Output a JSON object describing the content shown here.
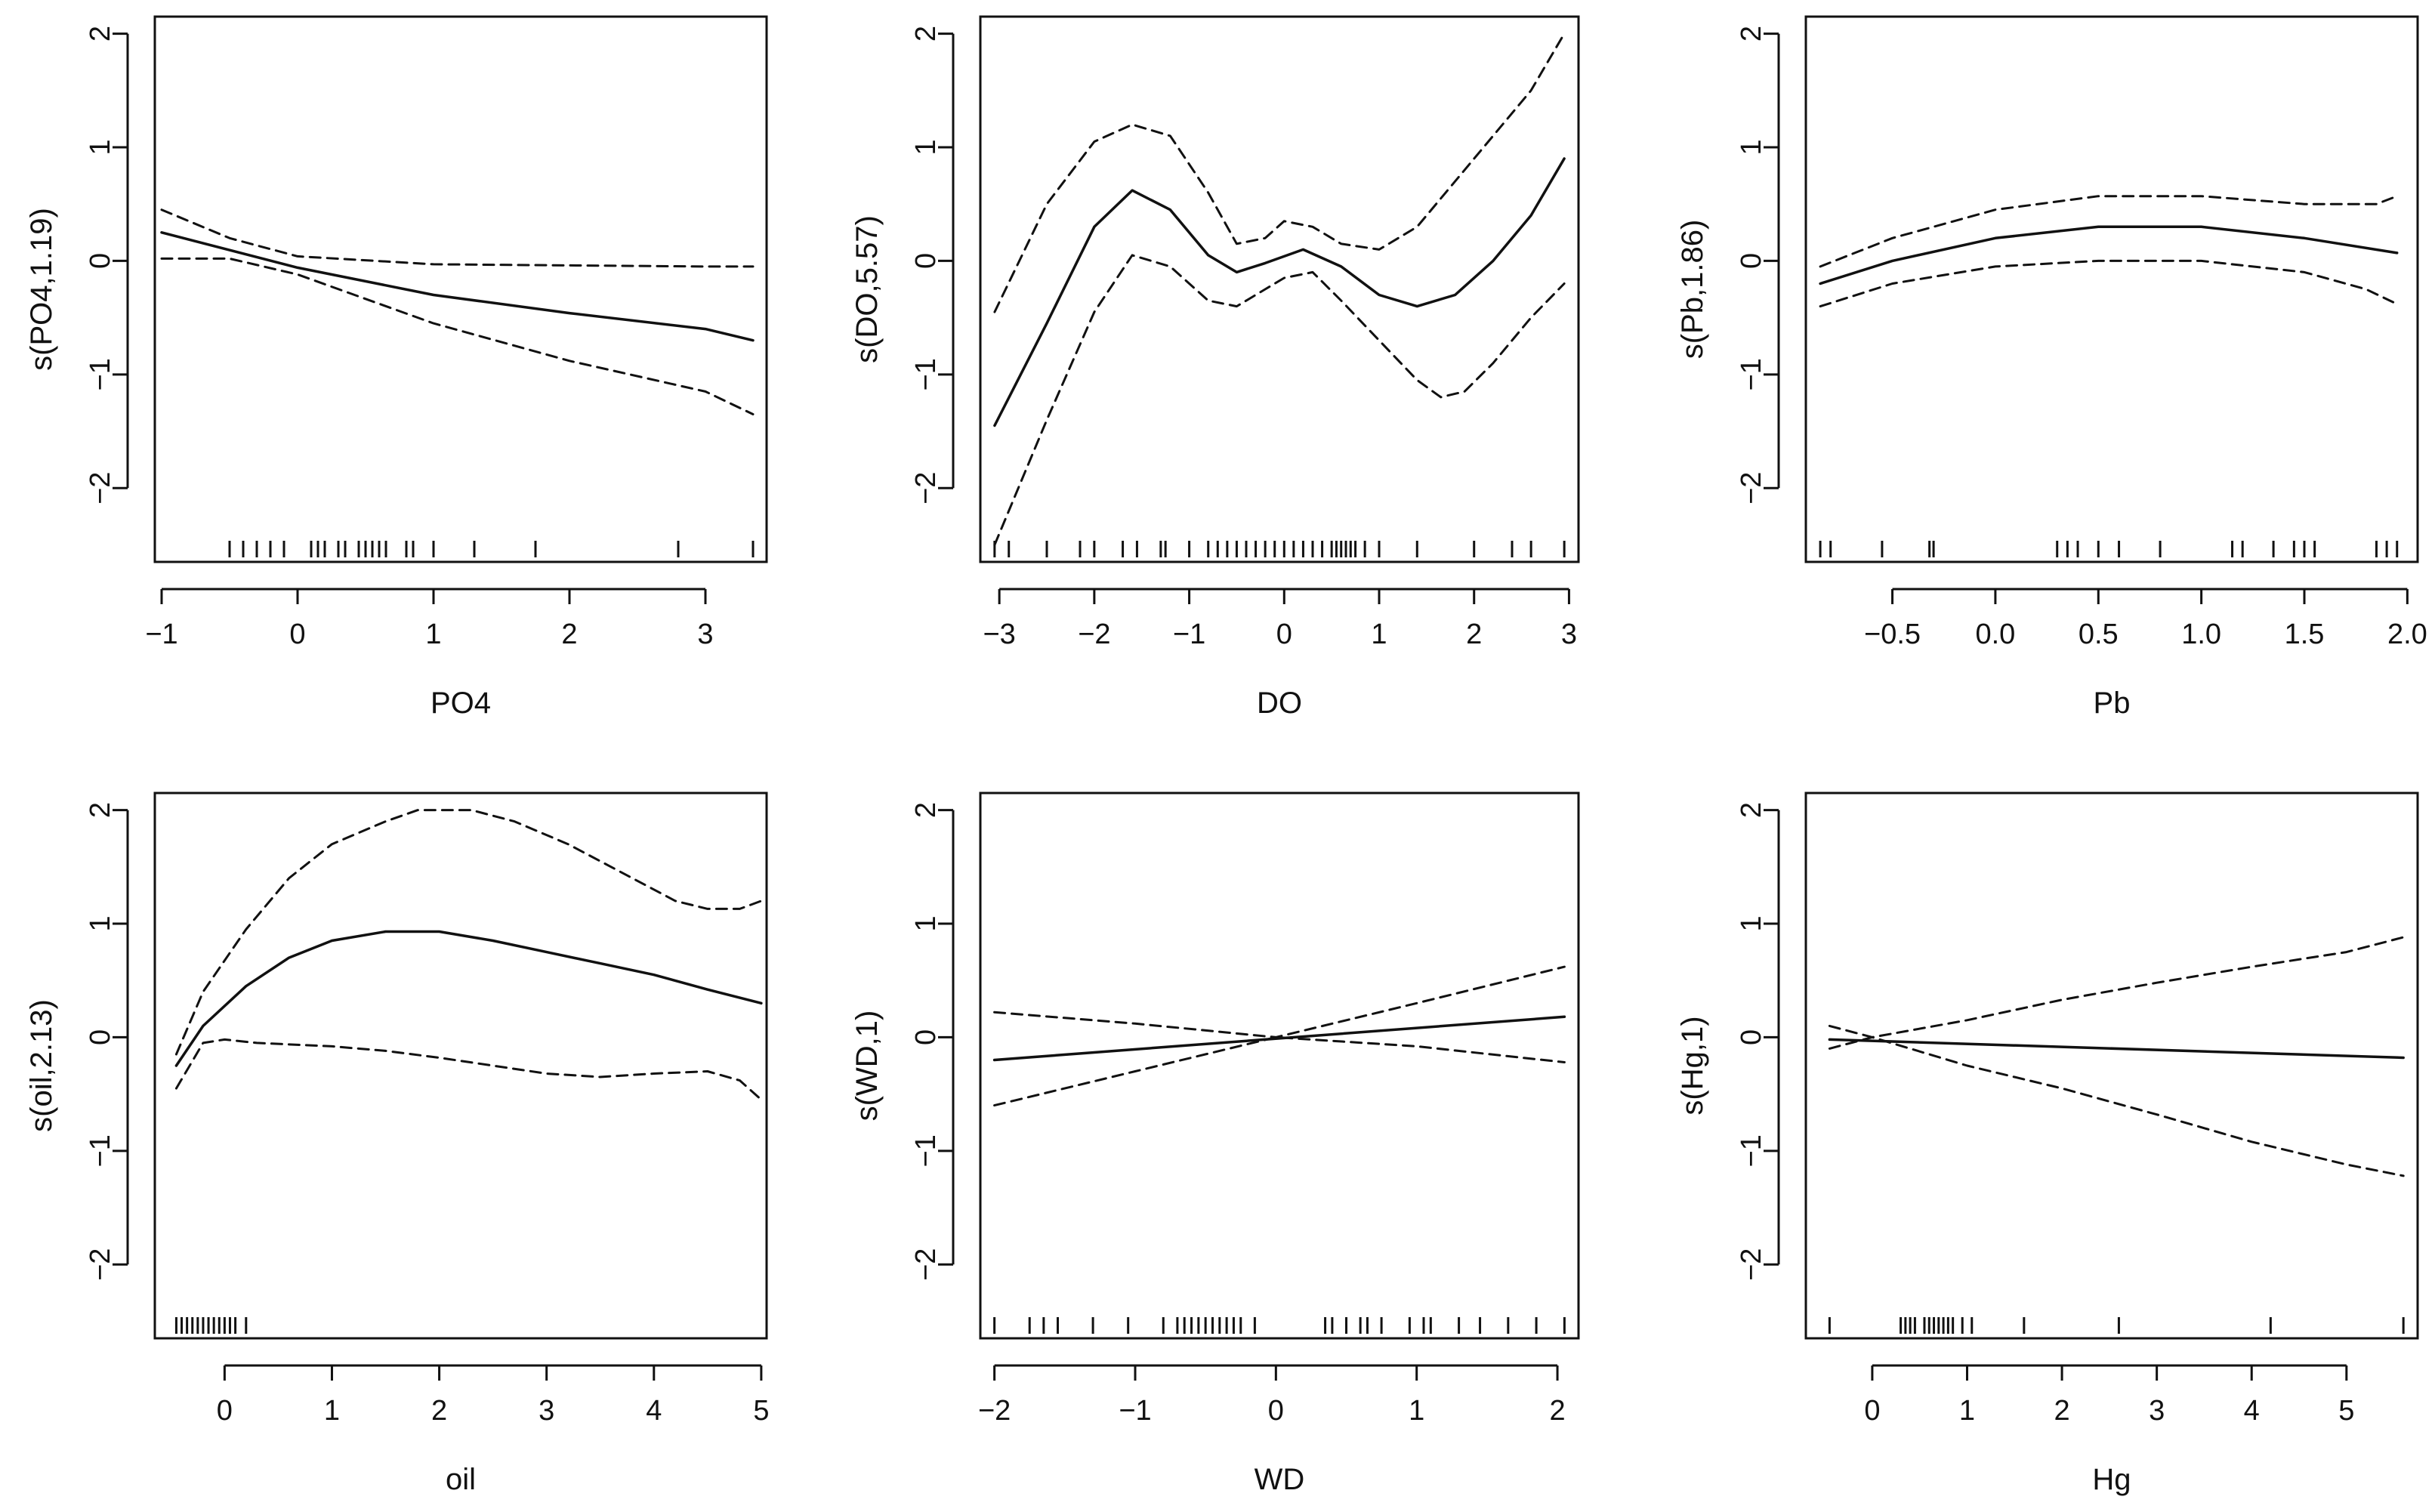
{
  "chart_data": [
    {
      "type": "line",
      "xlabel": "PO4",
      "ylabel": "s(PO4,1.19)",
      "xlim": [
        -1.05,
        3.45
      ],
      "ylim": [
        -2.65,
        2.15
      ],
      "xticks": [
        -1,
        0,
        1,
        2,
        3
      ],
      "xtick_labels": [
        "−1",
        "0",
        "1",
        "2",
        "3"
      ],
      "yticks": [
        -2,
        -1,
        0,
        1,
        2
      ],
      "ytick_labels": [
        "−2",
        "−1",
        "0",
        "1",
        "2"
      ],
      "series": [
        {
          "name": "fit",
          "style": "solid",
          "x": [
            -1,
            0,
            1,
            2,
            3,
            3.35
          ],
          "y": [
            0.25,
            -0.06,
            -0.3,
            -0.46,
            -0.6,
            -0.7
          ]
        },
        {
          "name": "upper",
          "style": "dashed",
          "x": [
            -1,
            -0.5,
            0,
            1,
            2,
            3,
            3.35
          ],
          "y": [
            0.45,
            0.2,
            0.04,
            -0.03,
            -0.04,
            -0.05,
            -0.05
          ]
        },
        {
          "name": "lower",
          "style": "dashed",
          "x": [
            -1,
            -0.5,
            0,
            1,
            2,
            3,
            3.35
          ],
          "y": [
            0.02,
            0.02,
            -0.12,
            -0.55,
            -0.88,
            -1.15,
            -1.35
          ]
        }
      ],
      "rug": [
        -0.5,
        -0.4,
        -0.3,
        -0.2,
        -0.1,
        0.1,
        0.15,
        0.2,
        0.3,
        0.35,
        0.45,
        0.5,
        0.55,
        0.6,
        0.65,
        0.8,
        0.85,
        1.0,
        1.3,
        1.75,
        2.8,
        3.35
      ]
    },
    {
      "type": "line",
      "xlabel": "DO",
      "ylabel": "s(DO,5.57)",
      "xlim": [
        -3.2,
        3.1
      ],
      "ylim": [
        -2.65,
        2.15
      ],
      "xticks": [
        -3,
        -2,
        -1,
        0,
        1,
        2,
        3
      ],
      "xtick_labels": [
        "−3",
        "−2",
        "−1",
        "0",
        "1",
        "2",
        "3"
      ],
      "yticks": [
        -2,
        -1,
        0,
        1,
        2
      ],
      "ytick_labels": [
        "−2",
        "−1",
        "0",
        "1",
        "2"
      ],
      "series": [
        {
          "name": "fit",
          "style": "solid",
          "x": [
            -3.05,
            -2.5,
            -2.0,
            -1.6,
            -1.2,
            -0.8,
            -0.5,
            -0.2,
            0.2,
            0.6,
            1.0,
            1.4,
            1.8,
            2.2,
            2.6,
            2.95
          ],
          "y": [
            -1.45,
            -0.55,
            0.3,
            0.62,
            0.45,
            0.05,
            -0.1,
            -0.02,
            0.1,
            -0.05,
            -0.3,
            -0.4,
            -0.3,
            0.0,
            0.4,
            0.9
          ]
        },
        {
          "name": "upper",
          "style": "dashed",
          "x": [
            -3.05,
            -2.5,
            -2.0,
            -1.6,
            -1.2,
            -0.8,
            -0.5,
            -0.2,
            0.0,
            0.3,
            0.6,
            1.0,
            1.4,
            1.8,
            2.2,
            2.6,
            2.95
          ],
          "y": [
            -0.45,
            0.5,
            1.05,
            1.2,
            1.1,
            0.6,
            0.15,
            0.2,
            0.35,
            0.3,
            0.15,
            0.1,
            0.3,
            0.7,
            1.1,
            1.5,
            2.0
          ]
        },
        {
          "name": "lower",
          "style": "dashed",
          "x": [
            -3.05,
            -2.5,
            -2.0,
            -1.6,
            -1.2,
            -0.8,
            -0.5,
            -0.2,
            0.0,
            0.3,
            0.6,
            1.0,
            1.4,
            1.65,
            1.9,
            2.2,
            2.6,
            2.95
          ],
          "y": [
            -2.5,
            -1.4,
            -0.45,
            0.05,
            -0.05,
            -0.35,
            -0.4,
            -0.25,
            -0.15,
            -0.1,
            -0.35,
            -0.7,
            -1.05,
            -1.2,
            -1.15,
            -0.9,
            -0.5,
            -0.2
          ]
        }
      ],
      "rug": [
        -3.05,
        -2.9,
        -2.5,
        -2.15,
        -2.0,
        -1.7,
        -1.55,
        -1.3,
        -1.25,
        -1.0,
        -0.8,
        -0.7,
        -0.6,
        -0.5,
        -0.4,
        -0.3,
        -0.2,
        -0.1,
        0.0,
        0.1,
        0.2,
        0.3,
        0.4,
        0.5,
        0.55,
        0.6,
        0.65,
        0.7,
        0.75,
        0.85,
        1.0,
        1.4,
        2.0,
        2.4,
        2.6,
        2.95
      ]
    },
    {
      "type": "line",
      "xlabel": "Pb",
      "ylabel": "s(Pb,1.86)",
      "xlim": [
        -0.92,
        2.05
      ],
      "ylim": [
        -2.65,
        2.15
      ],
      "xticks": [
        -0.5,
        0.0,
        0.5,
        1.0,
        1.5,
        2.0
      ],
      "xtick_labels": [
        "−0.5",
        "0.0",
        "0.5",
        "1.0",
        "1.5",
        "2.0"
      ],
      "yticks": [
        -2,
        -1,
        0,
        1,
        2
      ],
      "ytick_labels": [
        "−2",
        "−1",
        "0",
        "1",
        "2"
      ],
      "series": [
        {
          "name": "fit",
          "style": "solid",
          "x": [
            -0.85,
            -0.5,
            0.0,
            0.5,
            1.0,
            1.5,
            1.95
          ],
          "y": [
            -0.2,
            0.0,
            0.2,
            0.3,
            0.3,
            0.2,
            0.07
          ]
        },
        {
          "name": "upper",
          "style": "dashed",
          "x": [
            -0.85,
            -0.5,
            0.0,
            0.5,
            1.0,
            1.5,
            1.85,
            1.95
          ],
          "y": [
            -0.05,
            0.2,
            0.45,
            0.57,
            0.57,
            0.5,
            0.5,
            0.57
          ]
        },
        {
          "name": "lower",
          "style": "dashed",
          "x": [
            -0.85,
            -0.5,
            0.0,
            0.5,
            1.0,
            1.5,
            1.8,
            1.95
          ],
          "y": [
            -0.4,
            -0.2,
            -0.05,
            0.0,
            0.0,
            -0.1,
            -0.25,
            -0.38
          ]
        }
      ],
      "rug": [
        -0.85,
        -0.8,
        -0.55,
        -0.32,
        -0.3,
        0.3,
        0.35,
        0.4,
        0.5,
        0.6,
        0.8,
        1.15,
        1.2,
        1.35,
        1.45,
        1.5,
        1.55,
        1.85,
        1.9,
        1.95
      ]
    },
    {
      "type": "line",
      "xlabel": "oil",
      "ylabel": "s(oil,2.13)",
      "xlim": [
        -0.65,
        5.05
      ],
      "ylim": [
        -2.65,
        2.15
      ],
      "xticks": [
        0,
        1,
        2,
        3,
        4,
        5
      ],
      "xtick_labels": [
        "0",
        "1",
        "2",
        "3",
        "4",
        "5"
      ],
      "yticks": [
        -2,
        -1,
        0,
        1,
        2
      ],
      "ytick_labels": [
        "−2",
        "−1",
        "0",
        "1",
        "2"
      ],
      "series": [
        {
          "name": "fit",
          "style": "solid",
          "x": [
            -0.45,
            -0.2,
            0.2,
            0.6,
            1.0,
            1.5,
            2.0,
            2.5,
            3.0,
            3.5,
            4.0,
            4.5,
            5.0
          ],
          "y": [
            -0.25,
            0.1,
            0.45,
            0.7,
            0.85,
            0.93,
            0.93,
            0.85,
            0.75,
            0.65,
            0.55,
            0.42,
            0.3
          ]
        },
        {
          "name": "upper",
          "style": "dashed",
          "x": [
            -0.45,
            -0.2,
            0.2,
            0.6,
            1.0,
            1.5,
            1.8,
            2.3,
            2.7,
            3.2,
            3.7,
            4.2,
            4.5,
            4.8,
            5.0
          ],
          "y": [
            -0.15,
            0.4,
            0.95,
            1.4,
            1.7,
            1.9,
            2.0,
            2.0,
            1.9,
            1.7,
            1.45,
            1.2,
            1.13,
            1.13,
            1.2
          ]
        },
        {
          "name": "lower",
          "style": "dashed",
          "x": [
            -0.45,
            -0.2,
            0.0,
            0.3,
            1.0,
            1.5,
            2.0,
            2.5,
            3.0,
            3.5,
            4.0,
            4.5,
            4.8,
            5.0
          ],
          "y": [
            -0.45,
            -0.05,
            -0.02,
            -0.05,
            -0.08,
            -0.12,
            -0.18,
            -0.25,
            -0.32,
            -0.35,
            -0.32,
            -0.3,
            -0.38,
            -0.55
          ]
        }
      ],
      "rug": [
        -0.45,
        -0.4,
        -0.35,
        -0.3,
        -0.25,
        -0.2,
        -0.15,
        -0.1,
        -0.05,
        0.0,
        0.05,
        0.1,
        0.2
      ]
    },
    {
      "type": "line",
      "xlabel": "WD",
      "ylabel": "s(WD,1)",
      "xlim": [
        -2.1,
        2.15
      ],
      "ylim": [
        -2.65,
        2.15
      ],
      "xticks": [
        -2,
        -1,
        0,
        1,
        2
      ],
      "xtick_labels": [
        "−2",
        "−1",
        "0",
        "1",
        "2"
      ],
      "yticks": [
        -2,
        -1,
        0,
        1,
        2
      ],
      "ytick_labels": [
        "−2",
        "−1",
        "0",
        "1",
        "2"
      ],
      "series": [
        {
          "name": "fit",
          "style": "solid",
          "x": [
            -2.0,
            2.05
          ],
          "y": [
            -0.2,
            0.18
          ]
        },
        {
          "name": "upper",
          "style": "dashed",
          "x": [
            -2.0,
            -1.0,
            0.0,
            1.0,
            2.05
          ],
          "y": [
            0.22,
            0.12,
            0.0,
            0.3,
            0.62
          ]
        },
        {
          "name": "lower",
          "style": "dashed",
          "x": [
            -2.0,
            -1.0,
            0.0,
            1.0,
            2.05
          ],
          "y": [
            -0.6,
            -0.3,
            0.0,
            -0.08,
            -0.22
          ]
        }
      ],
      "rug": [
        -2.0,
        -1.75,
        -1.65,
        -1.55,
        -1.3,
        -1.05,
        -0.8,
        -0.7,
        -0.65,
        -0.6,
        -0.55,
        -0.5,
        -0.45,
        -0.4,
        -0.35,
        -0.3,
        -0.25,
        -0.15,
        0.35,
        0.4,
        0.5,
        0.6,
        0.65,
        0.75,
        0.95,
        1.05,
        1.1,
        1.3,
        1.45,
        1.65,
        1.85,
        2.05
      ]
    },
    {
      "type": "line",
      "xlabel": "Hg",
      "ylabel": "s(Hg,1)",
      "xlim": [
        -0.7,
        5.75
      ],
      "ylim": [
        -2.65,
        2.15
      ],
      "xticks": [
        0,
        1,
        2,
        3,
        4,
        5
      ],
      "xtick_labels": [
        "0",
        "1",
        "2",
        "3",
        "4",
        "5"
      ],
      "yticks": [
        -2,
        -1,
        0,
        1,
        2
      ],
      "ytick_labels": [
        "−2",
        "−1",
        "0",
        "1",
        "2"
      ],
      "series": [
        {
          "name": "fit",
          "style": "solid",
          "x": [
            -0.45,
            5.6
          ],
          "y": [
            -0.02,
            -0.18
          ]
        },
        {
          "name": "upper",
          "style": "dashed",
          "x": [
            -0.45,
            0.0,
            1.0,
            2.0,
            3.0,
            4.0,
            5.0,
            5.6
          ],
          "y": [
            0.1,
            0.0,
            0.15,
            0.33,
            0.48,
            0.62,
            0.75,
            0.88
          ]
        },
        {
          "name": "lower",
          "style": "dashed",
          "x": [
            -0.45,
            0.0,
            1.0,
            2.0,
            3.0,
            4.0,
            5.0,
            5.6
          ],
          "y": [
            -0.1,
            0.0,
            -0.25,
            -0.45,
            -0.68,
            -0.92,
            -1.12,
            -1.22
          ]
        }
      ],
      "rug": [
        -0.45,
        0.3,
        0.35,
        0.4,
        0.45,
        0.55,
        0.6,
        0.65,
        0.7,
        0.75,
        0.8,
        0.85,
        0.95,
        1.05,
        1.6,
        2.6,
        4.2,
        5.6
      ]
    }
  ]
}
